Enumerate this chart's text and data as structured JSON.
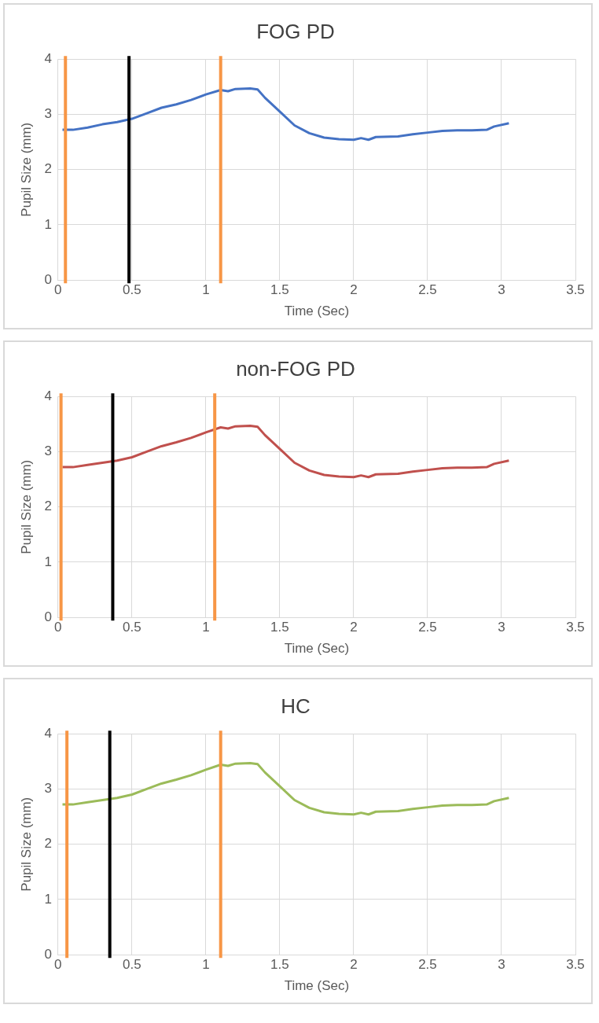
{
  "chart_data": [
    {
      "type": "line",
      "title": "FOG PD",
      "xlabel": "Time (Sec)",
      "ylabel": "Pupil Size (mm)",
      "xlim": [
        0,
        3.5
      ],
      "xticks": [
        0,
        0.5,
        1,
        1.5,
        2,
        2.5,
        3,
        3.5
      ],
      "ylim": [
        0,
        4
      ],
      "yticks": [
        0,
        1,
        2,
        3,
        4
      ],
      "grid": true,
      "legend": false,
      "marker": "none",
      "series": [
        {
          "color": "#4472c4",
          "x": [
            0.03,
            0.1,
            0.2,
            0.3,
            0.4,
            0.5,
            0.6,
            0.7,
            0.8,
            0.9,
            1.0,
            1.1,
            1.15,
            1.2,
            1.3,
            1.35,
            1.4,
            1.5,
            1.6,
            1.7,
            1.8,
            1.9,
            2.0,
            2.05,
            2.1,
            2.15,
            2.3,
            2.4,
            2.5,
            2.6,
            2.7,
            2.8,
            2.9,
            2.95,
            3.05
          ],
          "values": [
            2.72,
            2.72,
            2.76,
            2.82,
            2.86,
            2.92,
            3.02,
            3.12,
            3.18,
            3.26,
            3.36,
            3.44,
            3.42,
            3.46,
            3.47,
            3.45,
            3.3,
            3.05,
            2.8,
            2.66,
            2.58,
            2.55,
            2.54,
            2.57,
            2.54,
            2.59,
            2.6,
            2.64,
            2.67,
            2.7,
            2.71,
            2.71,
            2.72,
            2.78,
            2.84
          ]
        }
      ],
      "ref_lines": [
        {
          "axis": "x",
          "value": 0.05,
          "color": "#f79646"
        },
        {
          "axis": "x",
          "value": 0.48,
          "color": "#000000"
        },
        {
          "axis": "x",
          "value": 1.1,
          "color": "#f79646"
        }
      ]
    },
    {
      "type": "line",
      "title": "non-FOG PD",
      "xlabel": "Time (Sec)",
      "ylabel": "Pupil Size (mm)",
      "xlim": [
        0,
        3.5
      ],
      "xticks": [
        0,
        0.5,
        1,
        1.5,
        2,
        2.5,
        3,
        3.5
      ],
      "ylim": [
        0,
        4
      ],
      "yticks": [
        0,
        1,
        2,
        3,
        4
      ],
      "grid": true,
      "legend": false,
      "marker": "none",
      "series": [
        {
          "color": "#c0504d",
          "x": [
            0.03,
            0.1,
            0.2,
            0.3,
            0.4,
            0.5,
            0.6,
            0.7,
            0.8,
            0.9,
            1.0,
            1.1,
            1.15,
            1.2,
            1.3,
            1.35,
            1.4,
            1.5,
            1.6,
            1.7,
            1.8,
            1.9,
            2.0,
            2.05,
            2.1,
            2.15,
            2.3,
            2.4,
            2.5,
            2.6,
            2.7,
            2.8,
            2.9,
            2.95,
            3.05
          ],
          "values": [
            2.72,
            2.72,
            2.76,
            2.8,
            2.84,
            2.9,
            3.0,
            3.1,
            3.17,
            3.25,
            3.35,
            3.44,
            3.42,
            3.46,
            3.47,
            3.45,
            3.3,
            3.05,
            2.8,
            2.66,
            2.58,
            2.55,
            2.54,
            2.57,
            2.54,
            2.59,
            2.6,
            2.64,
            2.67,
            2.7,
            2.71,
            2.71,
            2.72,
            2.78,
            2.84
          ]
        }
      ],
      "ref_lines": [
        {
          "axis": "x",
          "value": 0.02,
          "color": "#f79646"
        },
        {
          "axis": "x",
          "value": 0.37,
          "color": "#000000"
        },
        {
          "axis": "x",
          "value": 1.06,
          "color": "#f79646"
        }
      ]
    },
    {
      "type": "line",
      "title": "HC",
      "xlabel": "Time (Sec)",
      "ylabel": "Pupil Size (mm)",
      "xlim": [
        0,
        3.5
      ],
      "xticks": [
        0,
        0.5,
        1,
        1.5,
        2,
        2.5,
        3,
        3.5
      ],
      "ylim": [
        0,
        4
      ],
      "yticks": [
        0,
        1,
        2,
        3,
        4
      ],
      "grid": true,
      "legend": false,
      "marker": "none",
      "series": [
        {
          "color": "#9bbb59",
          "x": [
            0.03,
            0.1,
            0.2,
            0.3,
            0.4,
            0.5,
            0.6,
            0.7,
            0.8,
            0.9,
            1.0,
            1.1,
            1.15,
            1.2,
            1.3,
            1.35,
            1.4,
            1.5,
            1.6,
            1.7,
            1.8,
            1.9,
            2.0,
            2.05,
            2.1,
            2.15,
            2.3,
            2.4,
            2.5,
            2.6,
            2.7,
            2.8,
            2.9,
            2.95,
            3.05
          ],
          "values": [
            2.72,
            2.72,
            2.76,
            2.8,
            2.84,
            2.9,
            3.0,
            3.1,
            3.17,
            3.25,
            3.35,
            3.44,
            3.42,
            3.46,
            3.47,
            3.45,
            3.3,
            3.05,
            2.8,
            2.66,
            2.58,
            2.55,
            2.54,
            2.57,
            2.54,
            2.59,
            2.6,
            2.64,
            2.67,
            2.7,
            2.71,
            2.71,
            2.72,
            2.78,
            2.84
          ]
        }
      ],
      "ref_lines": [
        {
          "axis": "x",
          "value": 0.06,
          "color": "#f79646"
        },
        {
          "axis": "x",
          "value": 0.35,
          "color": "#000000"
        },
        {
          "axis": "x",
          "value": 1.1,
          "color": "#f79646"
        }
      ]
    }
  ]
}
